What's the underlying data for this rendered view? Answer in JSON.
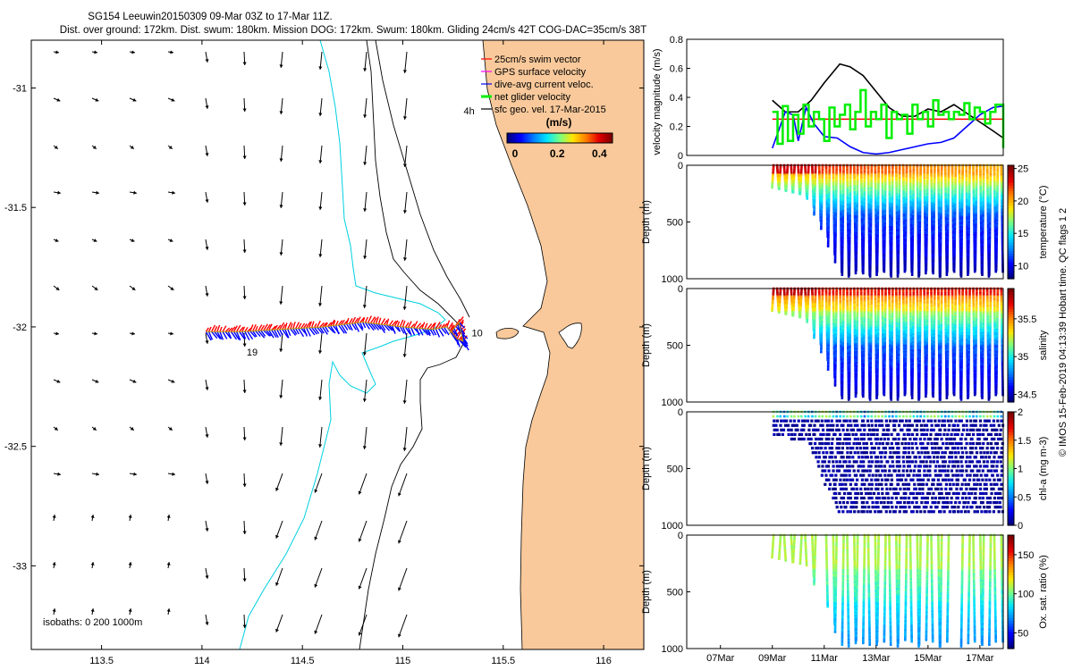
{
  "title": {
    "line1": "SG154 Leeuwin20150309 09-Mar 03Z to 17-Mar 11Z.",
    "line2": "Dist. over ground: 172km. Dist. swum: 180km. Mission DOG: 172km. Swum: 180km. Gliding 24cm/s 42T COG-DAC=35cm/s 38T"
  },
  "copyright": "© IMOS 15-Feb-2019 04:13:39 Hobart time. QC flags 1  2",
  "colors": {
    "land": "#f9c99b",
    "isobath_shallow": "#00d0e0",
    "isobath_deep": "#000000",
    "swim": "#ff0000",
    "gps": "#ff00ff",
    "dac": "#0000ff",
    "net": "#00ee00",
    "sfc": "#000000"
  },
  "chart_data": [
    {
      "type": "map",
      "name": "track-map",
      "xlim": [
        113.15,
        116.2
      ],
      "ylim": [
        -33.35,
        -30.8
      ],
      "xticks": [
        113.5,
        114,
        114.5,
        115,
        115.5,
        116
      ],
      "xtick_labels": [
        "113.5",
        "114",
        "114.5",
        "115",
        "115.5",
        "116"
      ],
      "yticks": [
        -31,
        -31.5,
        -32,
        -32.5,
        -33
      ],
      "ytick_labels": [
        "-31",
        "-31.5",
        "-32",
        "-32.5",
        "-33"
      ],
      "legend": [
        "25cm/s swim vector",
        "GPS surface velocity",
        "dive-avg current veloc.",
        "net glider velocity",
        "sfc geo. vel. 17-Mar-2015"
      ],
      "colorbar": {
        "label": "(m/s)",
        "ticks": [
          0,
          0.2,
          0.4
        ],
        "tick_labels": [
          "0",
          "0.2",
          "0.4"
        ],
        "range": [
          0,
          0.5
        ]
      },
      "annotations": [
        {
          "text": "19",
          "lon": 114.25,
          "lat": -32.12
        },
        {
          "text": "10",
          "lon": 115.37,
          "lat": -32.04
        },
        {
          "text": "4h",
          "lon": 115.33,
          "lat": -31.11
        }
      ],
      "isobath_label": "isobaths: 0   200  1000m",
      "track": [
        [
          114.02,
          -32.02
        ],
        [
          114.2,
          -32.02
        ],
        [
          114.4,
          -32.01
        ],
        [
          114.6,
          -32.0
        ],
        [
          114.8,
          -31.98
        ],
        [
          115.0,
          -32.0
        ],
        [
          115.15,
          -32.01
        ],
        [
          115.22,
          -32.0
        ],
        [
          115.27,
          -32.05
        ],
        [
          115.3,
          -32.06
        ],
        [
          115.28,
          -31.98
        ],
        [
          115.23,
          -32.03
        ]
      ]
    },
    {
      "type": "line",
      "name": "velocity-magnitude",
      "ylabel": "velocity magnitude (m/s)",
      "ylim": [
        0,
        0.8
      ],
      "yticks": [
        0,
        0.2,
        0.4,
        0.6,
        0.8
      ],
      "ytick_labels": [
        "0",
        "0.2",
        "0.4",
        "0.6",
        "0.8"
      ],
      "xlim": [
        5.7,
        17.9
      ],
      "series": [
        {
          "name": "sfc geo. vel.",
          "color": "#000000",
          "x": [
            9.0,
            9.5,
            10.0,
            10.5,
            11.0,
            11.6,
            12.0,
            12.5,
            13.0,
            13.5,
            14.0,
            14.5,
            15.0,
            15.5,
            16.0,
            16.5,
            17.0,
            17.5,
            17.9
          ],
          "y": [
            0.38,
            0.3,
            0.3,
            0.38,
            0.5,
            0.63,
            0.61,
            0.55,
            0.44,
            0.33,
            0.27,
            0.27,
            0.32,
            0.3,
            0.35,
            0.29,
            0.23,
            0.17,
            0.12
          ]
        },
        {
          "name": "swim vector",
          "color": "#ff0000",
          "x": [
            9.0,
            17.9
          ],
          "y": [
            0.25,
            0.25
          ]
        },
        {
          "name": "dive-avg current",
          "color": "#0000ff",
          "x": [
            9.0,
            9.5,
            9.8,
            10.0,
            10.3,
            10.6,
            11.0,
            11.5,
            12.0,
            12.5,
            13.0,
            13.5,
            14.0,
            14.5,
            15.0,
            15.5,
            16.0,
            16.5,
            17.0,
            17.5,
            17.9
          ],
          "y": [
            0.05,
            0.3,
            0.28,
            0.1,
            0.33,
            0.22,
            0.13,
            0.12,
            0.06,
            0.02,
            0.01,
            0.02,
            0.04,
            0.06,
            0.08,
            0.09,
            0.12,
            0.2,
            0.28,
            0.33,
            0.34
          ]
        },
        {
          "name": "net glider velocity",
          "color": "#00ee00",
          "x": [
            9.0,
            9.2,
            9.4,
            9.6,
            9.8,
            10.0,
            10.2,
            10.4,
            10.6,
            10.8,
            11.0,
            11.2,
            11.4,
            11.6,
            11.8,
            12.0,
            12.2,
            12.4,
            12.6,
            12.8,
            13.0,
            13.2,
            13.4,
            13.6,
            13.8,
            14.0,
            14.2,
            14.4,
            14.6,
            14.8,
            15.0,
            15.2,
            15.4,
            15.6,
            15.8,
            16.0,
            16.2,
            16.4,
            16.6,
            16.8,
            17.0,
            17.2,
            17.4,
            17.6,
            17.9
          ],
          "y": [
            0.3,
            0.08,
            0.34,
            0.1,
            0.28,
            0.15,
            0.35,
            0.2,
            0.3,
            0.25,
            0.1,
            0.33,
            0.2,
            0.28,
            0.35,
            0.18,
            0.3,
            0.45,
            0.2,
            0.3,
            0.25,
            0.35,
            0.12,
            0.3,
            0.25,
            0.28,
            0.15,
            0.35,
            0.25,
            0.3,
            0.2,
            0.38,
            0.28,
            0.3,
            0.25,
            0.3,
            0.28,
            0.36,
            0.25,
            0.33,
            0.3,
            0.22,
            0.3,
            0.35,
            0.05
          ]
        }
      ]
    },
    {
      "type": "heatmap",
      "name": "temperature-section",
      "ylabel": "Depth (m)",
      "ylim": [
        1000,
        0
      ],
      "yticks": [
        0,
        500,
        1000
      ],
      "ytick_labels": [
        "0",
        "500",
        "1000"
      ],
      "cbar_label": "temperature (°C)",
      "cbar_range": [
        8,
        25.5
      ],
      "cbar_ticks": [
        10,
        15,
        20,
        25
      ],
      "cbar_tick_labels": [
        "10",
        "15",
        "20",
        "25"
      ],
      "profile": "temperature"
    },
    {
      "type": "heatmap",
      "name": "salinity-section",
      "ylabel": "Depth (m)",
      "ylim": [
        1000,
        0
      ],
      "yticks": [
        0,
        500,
        1000
      ],
      "ytick_labels": [
        "0",
        "500",
        "1000"
      ],
      "cbar_label": "salinity",
      "cbar_range": [
        34.4,
        35.9
      ],
      "cbar_ticks": [
        34.5,
        35,
        35.5
      ],
      "cbar_tick_labels": [
        "34.5",
        "35",
        "35.5"
      ],
      "profile": "salinity"
    },
    {
      "type": "heatmap",
      "name": "chlorophyll-section",
      "ylabel": "Depth (m)",
      "ylim": [
        1000,
        0
      ],
      "yticks": [
        0,
        500,
        1000
      ],
      "ytick_labels": [
        "0",
        "500",
        "1000"
      ],
      "cbar_label": "chl-a (mg m-3)",
      "cbar_range": [
        0,
        2
      ],
      "cbar_ticks": [
        0,
        0.5,
        1,
        1.5,
        2
      ],
      "cbar_tick_labels": [
        "0",
        "0.5",
        "1",
        "1.5",
        "2"
      ],
      "profile": "chl"
    },
    {
      "type": "heatmap",
      "name": "oxygen-section",
      "ylabel": "Depth (m)",
      "ylim": [
        1000,
        0
      ],
      "yticks": [
        0,
        500,
        1000
      ],
      "ytick_labels": [
        "0",
        "500",
        "1000"
      ],
      "cbar_label": "Ox. sat. ratio (%)",
      "cbar_range": [
        30,
        175
      ],
      "cbar_ticks": [
        50,
        100,
        150
      ],
      "cbar_tick_labels": [
        "50",
        "100",
        "150"
      ],
      "profile": "oxygen",
      "xticks": [
        7,
        9,
        11,
        13,
        15,
        17
      ],
      "xtick_labels": [
        "07Mar",
        "09Mar",
        "11Mar",
        "13Mar",
        "15Mar",
        "17Mar"
      ]
    }
  ]
}
